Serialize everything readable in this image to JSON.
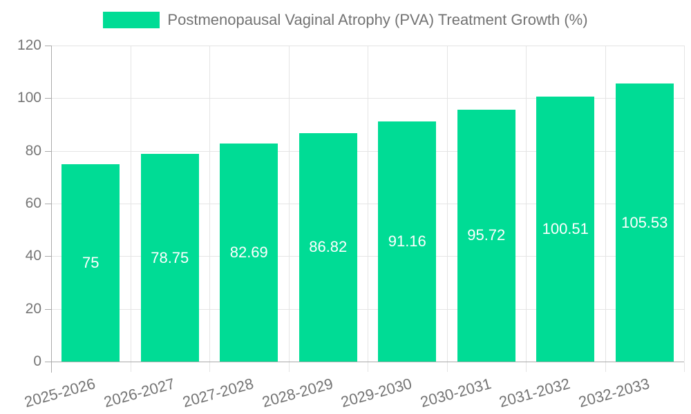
{
  "chart_data": {
    "type": "bar",
    "title": "Postmenopausal Vaginal Atrophy (PVA) Treatment Growth (%)",
    "legend": {
      "label": "Postmenopausal Vaginal Atrophy (PVA) Treatment Growth (%)",
      "position": "top-center"
    },
    "categories": [
      "2025-2026",
      "2026-2027",
      "2027-2028",
      "2028-2029",
      "2029-2030",
      "2030-2031",
      "2031-2032",
      "2032-2033"
    ],
    "values": [
      75,
      78.75,
      82.69,
      86.82,
      91.16,
      95.72,
      100.51,
      105.53
    ],
    "value_labels": [
      "75",
      "78.75",
      "82.69",
      "86.82",
      "91.16",
      "95.72",
      "100.51",
      "105.53"
    ],
    "xlabel": "",
    "ylabel": "",
    "ylim": [
      0,
      120
    ],
    "yticks": [
      0,
      20,
      40,
      60,
      80,
      100,
      120
    ],
    "grid": true,
    "x_labels_rotation_deg": -15.5,
    "colors": {
      "bar": "#00DC95",
      "bar_value_label": "#ffffff",
      "axis_text": "#757575",
      "legend_text": "#737373",
      "gridline": "#e4e4e4",
      "axis_line": "#aaaaaa",
      "background": "#ffffff"
    }
  }
}
